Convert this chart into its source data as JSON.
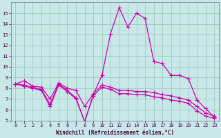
{
  "xlabel": "Windchill (Refroidissement éolien,°C)",
  "bg_color": "#c8e8e8",
  "grid_color": "#a0c8c0",
  "line_color": "#cc00aa",
  "x_values": [
    0,
    1,
    2,
    3,
    4,
    5,
    6,
    7,
    8,
    9,
    10,
    11,
    12,
    13,
    14,
    15,
    16,
    17,
    18,
    19,
    20,
    21,
    22,
    23
  ],
  "line1": [
    8.4,
    8.7,
    8.2,
    8.1,
    7.0,
    8.5,
    8.0,
    7.8,
    6.3,
    7.5,
    8.3,
    8.1,
    7.8,
    7.8,
    7.7,
    7.7,
    7.6,
    7.4,
    7.3,
    7.1,
    6.9,
    6.3,
    5.7,
    5.4
  ],
  "line2": [
    8.4,
    8.3,
    8.1,
    7.9,
    6.5,
    8.4,
    7.8,
    7.1,
    4.9,
    7.4,
    9.2,
    13.1,
    15.5,
    13.7,
    15.0,
    14.5,
    10.5,
    10.3,
    9.2,
    9.2,
    8.9,
    6.9,
    6.1,
    5.3
  ],
  "line3": [
    8.4,
    8.2,
    8.0,
    7.8,
    6.3,
    8.3,
    7.7,
    7.0,
    4.9,
    7.3,
    8.1,
    7.9,
    7.5,
    7.5,
    7.4,
    7.4,
    7.2,
    7.1,
    6.9,
    6.8,
    6.6,
    5.9,
    5.4,
    5.2
  ],
  "ylim": [
    5,
    16
  ],
  "xlim": [
    -0.5,
    23.5
  ],
  "yticks": [
    5,
    6,
    7,
    8,
    9,
    10,
    11,
    12,
    13,
    14,
    15
  ],
  "xticks": [
    0,
    1,
    2,
    3,
    4,
    5,
    6,
    7,
    8,
    9,
    10,
    11,
    12,
    13,
    14,
    15,
    16,
    17,
    18,
    19,
    20,
    21,
    22,
    23
  ],
  "tick_fontsize": 5.0,
  "xlabel_fontsize": 5.5
}
